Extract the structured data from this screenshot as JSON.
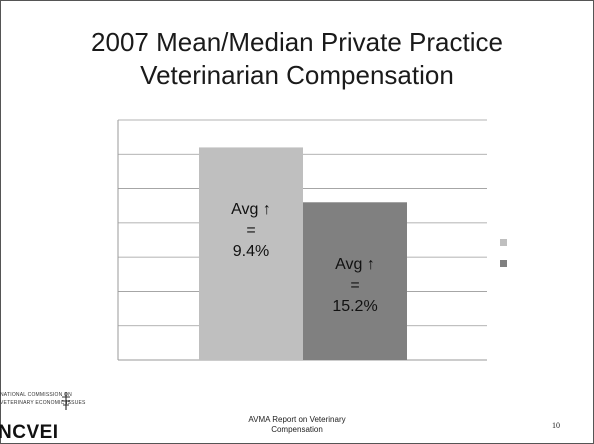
{
  "slide": {
    "title_line1": "2007 Mean/Median Private Practice",
    "title_line2": "Veterinarian Compensation",
    "footer_line1": "AVMA Report on Veterinary",
    "footer_line2": "Compensation",
    "page_number": "10"
  },
  "logo": {
    "small_line1": "NATIONAL COMMISSION ON",
    "small_line2": "VETERINARY ECONOMIC ISSUES",
    "acronym": "NCVEI"
  },
  "chart_data": {
    "type": "bar",
    "categories": [
      ""
    ],
    "series": [
      {
        "values": [
          6.2
        ],
        "color": "#bfbfbf"
      },
      {
        "values": [
          4.6
        ],
        "color": "#808080"
      }
    ],
    "ylim": [
      0,
      7
    ],
    "grid": true,
    "legend": "right",
    "title": "",
    "xlabel": "",
    "ylabel": "",
    "annotations": [
      {
        "line1": "Avg ↑",
        "line2": "=",
        "line3": "9.4%"
      },
      {
        "line1": "Avg ↑",
        "line2": "=",
        "line3": "15.2%"
      }
    ]
  }
}
